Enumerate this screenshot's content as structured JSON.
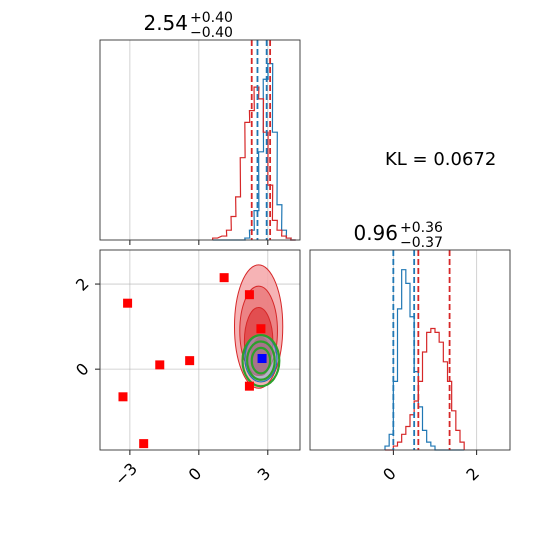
{
  "colors": {
    "blue": "#1f77b4",
    "red": "#d62728",
    "green": "#2ca02c",
    "marker_red": "#ff0000",
    "marker_blue": "#0000ff"
  },
  "kl_text": "KL = 0.0672",
  "chart_data": [
    {
      "type": "histogram",
      "panel": "top-left",
      "title": {
        "value": "2.54",
        "plus": "+0.40",
        "minus": "−0.40"
      },
      "xlim": [
        -4.3,
        4.4
      ],
      "grid": true,
      "xticks": [
        -3,
        0,
        3
      ],
      "bins_x": [
        0.6,
        1.0,
        1.2,
        1.4,
        1.6,
        1.8,
        2.0,
        2.2,
        2.4,
        2.6,
        2.8,
        3.0,
        3.2,
        3.4,
        3.6,
        3.8,
        4.0
      ],
      "series": [
        {
          "color": "blue",
          "values": [
            0,
            0,
            0,
            0,
            0,
            0,
            0.01,
            0.05,
            0.15,
            0.45,
            0.82,
            0.9,
            0.55,
            0.18,
            0.05,
            0.01,
            0
          ]
        },
        {
          "color": "red",
          "values": [
            0.01,
            0.02,
            0.05,
            0.12,
            0.22,
            0.42,
            0.6,
            0.66,
            0.78,
            0.72,
            0.55,
            0.28,
            0.1,
            0.05,
            0.02,
            0.01,
            0
          ]
        }
      ],
      "vlines": [
        {
          "x": 2.3,
          "color": "red"
        },
        {
          "x": 3.1,
          "color": "red"
        },
        {
          "x": 2.55,
          "color": "blue"
        },
        {
          "x": 2.95,
          "color": "blue"
        }
      ]
    },
    {
      "type": "scatter",
      "panel": "bottom-left",
      "xlim": [
        -4.3,
        4.4
      ],
      "ylim": [
        -1.9,
        2.8
      ],
      "grid": true,
      "xticks": [
        -3,
        0,
        3
      ],
      "yticks": [
        0,
        2
      ],
      "contours_red": [
        {
          "cx": 2.6,
          "cy": 1.0,
          "rx": 1.05,
          "ry": 1.45
        },
        {
          "cx": 2.6,
          "cy": 0.9,
          "rx": 0.82,
          "ry": 1.05
        },
        {
          "cx": 2.6,
          "cy": 0.65,
          "rx": 0.62,
          "ry": 0.8
        },
        {
          "cx": 2.7,
          "cy": 0.3,
          "rx": 0.42,
          "ry": 0.45
        }
      ],
      "contours_blue": [
        {
          "cx": 2.7,
          "cy": 0.25,
          "rx": 0.7,
          "ry": 0.55
        }
      ],
      "contours_green": [
        {
          "cx": 2.7,
          "cy": 0.2,
          "rx": 0.8,
          "ry": 0.6
        },
        {
          "cx": 2.7,
          "cy": 0.2,
          "rx": 0.6,
          "ry": 0.45
        },
        {
          "cx": 2.7,
          "cy": 0.2,
          "rx": 0.4,
          "ry": 0.3
        }
      ],
      "red_markers": [
        [
          1.1,
          2.15
        ],
        [
          2.2,
          1.75
        ],
        [
          -3.1,
          1.55
        ],
        [
          2.7,
          0.95
        ],
        [
          -0.4,
          0.2
        ],
        [
          -1.7,
          0.1
        ],
        [
          -3.3,
          -0.65
        ],
        [
          -2.4,
          -1.75
        ],
        [
          2.2,
          -0.4
        ]
      ],
      "blue_markers": [
        [
          2.75,
          0.25
        ]
      ]
    },
    {
      "type": "histogram",
      "panel": "bottom-right",
      "title": {
        "value": "0.96",
        "plus": "+0.36",
        "minus": "−0.37"
      },
      "xlim": [
        -2.0,
        2.8
      ],
      "grid": true,
      "xticks": [
        0,
        2
      ],
      "bins_x": [
        -0.2,
        -0.1,
        0.0,
        0.1,
        0.2,
        0.3,
        0.4,
        0.5,
        0.6,
        0.7,
        0.8,
        0.9,
        1.0,
        1.1,
        1.2,
        1.3,
        1.4,
        1.5,
        1.6
      ],
      "series": [
        {
          "color": "blue",
          "values": [
            0.02,
            0.08,
            0.35,
            0.72,
            0.92,
            0.85,
            0.68,
            0.4,
            0.22,
            0.1,
            0.04,
            0.02,
            0,
            0,
            0,
            0,
            0,
            0,
            0
          ]
        },
        {
          "color": "red",
          "values": [
            0,
            0,
            0.02,
            0.04,
            0.08,
            0.12,
            0.18,
            0.25,
            0.35,
            0.5,
            0.6,
            0.62,
            0.6,
            0.55,
            0.45,
            0.35,
            0.2,
            0.1,
            0.04
          ]
        }
      ],
      "vlines": [
        {
          "x": 0.0,
          "color": "blue"
        },
        {
          "x": 0.5,
          "color": "blue"
        },
        {
          "x": 0.6,
          "color": "red"
        },
        {
          "x": 1.35,
          "color": "red"
        }
      ]
    }
  ]
}
